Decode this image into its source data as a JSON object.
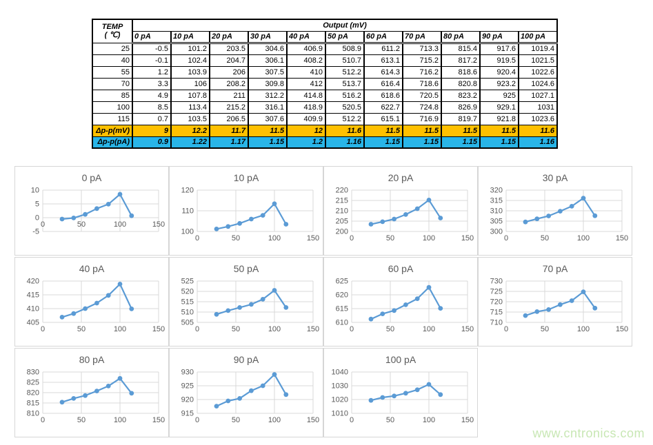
{
  "table": {
    "temp_header_line1": "TEMP",
    "temp_header_line2": "( ℃)",
    "output_header": "Output (mV)",
    "columns": [
      "0 pA",
      "10 pA",
      "20 pA",
      "30 pA",
      "40 pA",
      "50 pA",
      "60 pA",
      "70 pA",
      "80 pA",
      "90 pA",
      "100 pA"
    ],
    "rows": [
      {
        "temp": "25",
        "values": [
          "-0.5",
          "101.2",
          "203.5",
          "304.6",
          "406.9",
          "508.9",
          "611.2",
          "713.3",
          "815.4",
          "917.6",
          "1019.4"
        ]
      },
      {
        "temp": "40",
        "values": [
          "-0.1",
          "102.4",
          "204.7",
          "306.1",
          "408.2",
          "510.7",
          "613.1",
          "715.2",
          "817.2",
          "919.5",
          "1021.5"
        ]
      },
      {
        "temp": "55",
        "values": [
          "1.2",
          "103.9",
          "206",
          "307.5",
          "410",
          "512.2",
          "614.3",
          "716.2",
          "818.6",
          "920.4",
          "1022.6"
        ]
      },
      {
        "temp": "70",
        "values": [
          "3.3",
          "106",
          "208.2",
          "309.8",
          "412",
          "513.7",
          "616.4",
          "718.6",
          "820.8",
          "923.2",
          "1024.6"
        ]
      },
      {
        "temp": "85",
        "values": [
          "4.9",
          "107.8",
          "211",
          "312.2",
          "414.8",
          "516.2",
          "618.6",
          "720.5",
          "823.2",
          "925",
          "1027.1"
        ]
      },
      {
        "temp": "100",
        "values": [
          "8.5",
          "113.4",
          "215.2",
          "316.1",
          "418.9",
          "520.5",
          "622.7",
          "724.8",
          "826.9",
          "929.1",
          "1031"
        ]
      },
      {
        "temp": "115",
        "values": [
          "0.7",
          "103.5",
          "206.5",
          "307.6",
          "409.9",
          "512.2",
          "615.1",
          "716.9",
          "819.7",
          "921.8",
          "1023.6"
        ]
      }
    ],
    "delta_mv": {
      "label": "Δp-p(mV)",
      "bg": "#FFC000",
      "values": [
        "9",
        "12.2",
        "11.7",
        "11.5",
        "12",
        "11.6",
        "11.5",
        "11.5",
        "11.5",
        "11.5",
        "11.6"
      ]
    },
    "delta_pa": {
      "label": "Δp-p(pA)",
      "bg": "#29B5E8",
      "values": [
        "0.9",
        "1.22",
        "1.17",
        "1.15",
        "1.2",
        "1.16",
        "1.15",
        "1.15",
        "1.15",
        "1.15",
        "1.16"
      ]
    }
  },
  "chart_style": {
    "line_color": "#5B9BD5",
    "grid_color": "#d9d9d9",
    "text_color": "#595959",
    "title_size": 14,
    "tick_size": 11
  },
  "chart_data": [
    {
      "type": "line",
      "title": "0 pA",
      "x": [
        25,
        40,
        55,
        70,
        85,
        100,
        115
      ],
      "values": [
        -0.5,
        -0.1,
        1.2,
        3.3,
        4.9,
        8.5,
        0.7
      ],
      "xlim": [
        0,
        150
      ],
      "ylim": [
        -5,
        10
      ],
      "xticks": [
        0,
        50,
        100,
        150
      ],
      "yticks": [
        -5,
        0,
        5,
        10
      ]
    },
    {
      "type": "line",
      "title": "10 pA",
      "x": [
        25,
        40,
        55,
        70,
        85,
        100,
        115
      ],
      "values": [
        101.2,
        102.4,
        103.9,
        106,
        107.8,
        113.4,
        103.5
      ],
      "xlim": [
        0,
        150
      ],
      "ylim": [
        100,
        120
      ],
      "xticks": [
        0,
        50,
        100,
        150
      ],
      "yticks": [
        100,
        110,
        120
      ]
    },
    {
      "type": "line",
      "title": "20 pA",
      "x": [
        25,
        40,
        55,
        70,
        85,
        100,
        115
      ],
      "values": [
        203.5,
        204.7,
        206,
        208.2,
        211,
        215.2,
        206.5
      ],
      "xlim": [
        0,
        150
      ],
      "ylim": [
        200,
        220
      ],
      "xticks": [
        0,
        50,
        100,
        150
      ],
      "yticks": [
        200,
        205,
        210,
        215,
        220
      ]
    },
    {
      "type": "line",
      "title": "30 pA",
      "x": [
        25,
        40,
        55,
        70,
        85,
        100,
        115
      ],
      "values": [
        304.6,
        306.1,
        307.5,
        309.8,
        312.2,
        316.1,
        307.6
      ],
      "xlim": [
        0,
        150
      ],
      "ylim": [
        300,
        320
      ],
      "xticks": [
        0,
        50,
        100,
        150
      ],
      "yticks": [
        300,
        305,
        310,
        315,
        320
      ]
    },
    {
      "type": "line",
      "title": "40 pA",
      "x": [
        25,
        40,
        55,
        70,
        85,
        100,
        115
      ],
      "values": [
        406.9,
        408.2,
        410,
        412,
        414.8,
        418.9,
        409.9
      ],
      "xlim": [
        0,
        150
      ],
      "ylim": [
        405,
        420
      ],
      "xticks": [
        0,
        50,
        100,
        150
      ],
      "yticks": [
        405,
        410,
        415,
        420
      ]
    },
    {
      "type": "line",
      "title": "50 pA",
      "x": [
        25,
        40,
        55,
        70,
        85,
        100,
        115
      ],
      "values": [
        508.9,
        510.7,
        512.2,
        513.7,
        516.2,
        520.5,
        512.2
      ],
      "xlim": [
        0,
        150
      ],
      "ylim": [
        505,
        525
      ],
      "xticks": [
        0,
        50,
        100,
        150
      ],
      "yticks": [
        505,
        510,
        515,
        520,
        525
      ]
    },
    {
      "type": "line",
      "title": "60 pA",
      "x": [
        25,
        40,
        55,
        70,
        85,
        100,
        115
      ],
      "values": [
        611.2,
        613.1,
        614.3,
        616.4,
        618.6,
        622.7,
        615.1
      ],
      "xlim": [
        0,
        150
      ],
      "ylim": [
        610,
        625
      ],
      "xticks": [
        0,
        50,
        100,
        150
      ],
      "yticks": [
        610,
        615,
        620,
        625
      ]
    },
    {
      "type": "line",
      "title": "70 pA",
      "x": [
        25,
        40,
        55,
        70,
        85,
        100,
        115
      ],
      "values": [
        713.3,
        715.2,
        716.2,
        718.6,
        720.5,
        724.8,
        716.9
      ],
      "xlim": [
        0,
        150
      ],
      "ylim": [
        710,
        730
      ],
      "xticks": [
        0,
        50,
        100,
        150
      ],
      "yticks": [
        710,
        715,
        720,
        725,
        730
      ]
    },
    {
      "type": "line",
      "title": "80 pA",
      "x": [
        25,
        40,
        55,
        70,
        85,
        100,
        115
      ],
      "values": [
        815.4,
        817.2,
        818.6,
        820.8,
        823.2,
        826.9,
        819.7
      ],
      "xlim": [
        0,
        150
      ],
      "ylim": [
        810,
        830
      ],
      "xticks": [
        0,
        50,
        100,
        150
      ],
      "yticks": [
        810,
        815,
        820,
        825,
        830
      ]
    },
    {
      "type": "line",
      "title": "90 pA",
      "x": [
        25,
        40,
        55,
        70,
        85,
        100,
        115
      ],
      "values": [
        917.6,
        919.5,
        920.4,
        923.2,
        925,
        929.1,
        921.8
      ],
      "xlim": [
        0,
        150
      ],
      "ylim": [
        915,
        930
      ],
      "xticks": [
        0,
        50,
        100,
        150
      ],
      "yticks": [
        915,
        920,
        925,
        930
      ]
    },
    {
      "type": "line",
      "title": "100 pA",
      "x": [
        25,
        40,
        55,
        70,
        85,
        100,
        115
      ],
      "values": [
        1019.4,
        1021.5,
        1022.6,
        1024.6,
        1027.1,
        1031,
        1023.6
      ],
      "xlim": [
        0,
        150
      ],
      "ylim": [
        1010,
        1040
      ],
      "xticks": [
        0,
        50,
        100,
        150
      ],
      "yticks": [
        1010,
        1020,
        1030,
        1040
      ]
    }
  ],
  "watermark": {
    "text": "www.cntronics.com"
  }
}
